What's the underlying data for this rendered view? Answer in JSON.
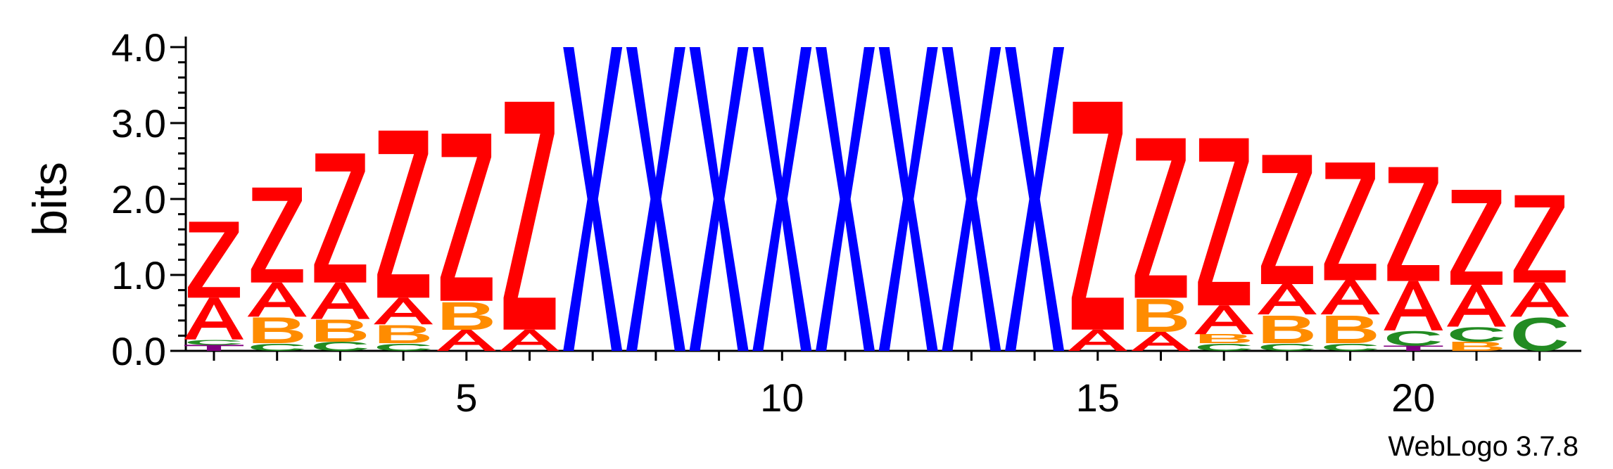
{
  "chart_data": {
    "type": "sequence-logo",
    "ylabel": "bits",
    "ylim": [
      0,
      4.0
    ],
    "y_ticks": [
      "0.0",
      "1.0",
      "2.0",
      "3.0",
      "4.0"
    ],
    "y_tick_values": [
      0,
      1,
      2,
      3,
      4
    ],
    "x_ticks": [
      "5",
      "10",
      "15",
      "20"
    ],
    "x_tick_values": [
      5,
      10,
      15,
      20
    ],
    "colors": {
      "Z": "#ff0000",
      "A": "#ff0000",
      "B": "#ff8c00",
      "C": "#228b22",
      "X": "#0000ff",
      "T": "#800080"
    },
    "positions": [
      {
        "pos": 1,
        "stack": [
          [
            "T",
            0.08
          ],
          [
            "C",
            0.07
          ],
          [
            "A",
            0.55
          ],
          [
            "Z",
            1.0
          ]
        ]
      },
      {
        "pos": 2,
        "stack": [
          [
            "C",
            0.1
          ],
          [
            "B",
            0.35
          ],
          [
            "A",
            0.45
          ],
          [
            "Z",
            1.25
          ]
        ]
      },
      {
        "pos": 3,
        "stack": [
          [
            "C",
            0.12
          ],
          [
            "B",
            0.3
          ],
          [
            "A",
            0.48
          ],
          [
            "Z",
            1.7
          ]
        ]
      },
      {
        "pos": 4,
        "stack": [
          [
            "C",
            0.1
          ],
          [
            "B",
            0.25
          ],
          [
            "A",
            0.35
          ],
          [
            "Z",
            2.2
          ]
        ]
      },
      {
        "pos": 5,
        "stack": [
          [
            "A",
            0.28
          ],
          [
            "B",
            0.38
          ],
          [
            "Z",
            2.2
          ]
        ]
      },
      {
        "pos": 6,
        "stack": [
          [
            "A",
            0.28
          ],
          [
            "Z",
            3.0
          ]
        ]
      },
      {
        "pos": 7,
        "stack": [
          [
            "X",
            4.0
          ]
        ]
      },
      {
        "pos": 8,
        "stack": [
          [
            "X",
            4.0
          ]
        ]
      },
      {
        "pos": 9,
        "stack": [
          [
            "X",
            4.0
          ]
        ]
      },
      {
        "pos": 10,
        "stack": [
          [
            "X",
            4.0
          ]
        ]
      },
      {
        "pos": 11,
        "stack": [
          [
            "X",
            4.0
          ]
        ]
      },
      {
        "pos": 12,
        "stack": [
          [
            "X",
            4.0
          ]
        ]
      },
      {
        "pos": 13,
        "stack": [
          [
            "X",
            4.0
          ]
        ]
      },
      {
        "pos": 14,
        "stack": [
          [
            "X",
            4.0
          ]
        ]
      },
      {
        "pos": 15,
        "stack": [
          [
            "A",
            0.28
          ],
          [
            "Z",
            3.0
          ]
        ]
      },
      {
        "pos": 16,
        "stack": [
          [
            "A",
            0.25
          ],
          [
            "B",
            0.45
          ],
          [
            "Z",
            2.1
          ]
        ]
      },
      {
        "pos": 17,
        "stack": [
          [
            "C",
            0.1
          ],
          [
            "B",
            0.12
          ],
          [
            "A",
            0.38
          ],
          [
            "Z",
            2.2
          ]
        ]
      },
      {
        "pos": 18,
        "stack": [
          [
            "C",
            0.1
          ],
          [
            "B",
            0.38
          ],
          [
            "A",
            0.4
          ],
          [
            "Z",
            1.7
          ]
        ]
      },
      {
        "pos": 19,
        "stack": [
          [
            "C",
            0.1
          ],
          [
            "B",
            0.38
          ],
          [
            "A",
            0.45
          ],
          [
            "Z",
            1.55
          ]
        ]
      },
      {
        "pos": 20,
        "stack": [
          [
            "T",
            0.07
          ],
          [
            "C",
            0.2
          ],
          [
            "A",
            0.65
          ],
          [
            "Z",
            1.5
          ]
        ]
      },
      {
        "pos": 21,
        "stack": [
          [
            "B",
            0.12
          ],
          [
            "C",
            0.2
          ],
          [
            "A",
            0.55
          ],
          [
            "Z",
            1.25
          ]
        ]
      },
      {
        "pos": 22,
        "stack": [
          [
            "C",
            0.45
          ],
          [
            "A",
            0.45
          ],
          [
            "Z",
            1.15
          ]
        ]
      }
    ]
  },
  "credit": "WebLogo 3.7.8"
}
